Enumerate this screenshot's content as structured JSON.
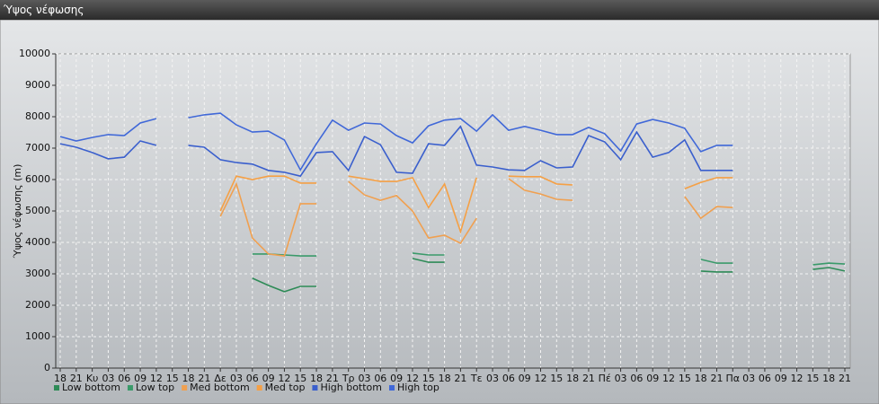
{
  "window": {
    "title": "Ύψος νέφωσης"
  },
  "chart_data": {
    "type": "line",
    "y_label": "Ύψος νέφωσης (m)",
    "categories": [
      "18",
      "21",
      "Κυ",
      "03",
      "06",
      "09",
      "12",
      "15",
      "18",
      "21",
      "Δε",
      "03",
      "06",
      "09",
      "12",
      "15",
      "18",
      "21",
      "Τρ",
      "03",
      "06",
      "09",
      "12",
      "15",
      "18",
      "21",
      "Τε",
      "03",
      "06",
      "09",
      "12",
      "15",
      "18",
      "21",
      "Πέ",
      "03",
      "06",
      "09",
      "12",
      "15",
      "18",
      "21",
      "Πα",
      "03",
      "06",
      "09",
      "12",
      "15",
      "18",
      "21"
    ],
    "ylim": [
      0,
      10000
    ],
    "yticks": [
      0,
      1000,
      2000,
      3000,
      4000,
      5000,
      6000,
      7000,
      8000,
      9000,
      10000
    ],
    "grid": true,
    "series": [
      {
        "name": "Low bottom",
        "color": "#2e8b57",
        "values": [
          null,
          null,
          null,
          null,
          null,
          null,
          null,
          null,
          null,
          null,
          null,
          null,
          2860,
          2630,
          2430,
          2600,
          2600,
          null,
          null,
          null,
          null,
          null,
          3490,
          3370,
          3370,
          null,
          null,
          null,
          null,
          null,
          null,
          null,
          null,
          null,
          null,
          null,
          null,
          null,
          null,
          null,
          3090,
          3060,
          3060,
          null,
          null,
          null,
          null,
          3140,
          3200,
          3090
        ]
      },
      {
        "name": "Low top",
        "color": "#3a9a6a",
        "values": [
          null,
          null,
          null,
          null,
          null,
          null,
          null,
          null,
          null,
          null,
          null,
          null,
          3630,
          3630,
          3600,
          3570,
          3570,
          null,
          null,
          null,
          null,
          null,
          3660,
          3600,
          3600,
          null,
          null,
          null,
          null,
          null,
          null,
          null,
          null,
          null,
          null,
          null,
          null,
          null,
          null,
          null,
          3460,
          3340,
          3340,
          null,
          null,
          null,
          null,
          3290,
          3340,
          3310
        ]
      },
      {
        "name": "Med bottom",
        "color": "#f0a050",
        "values": [
          null,
          null,
          null,
          null,
          null,
          null,
          null,
          null,
          null,
          null,
          4830,
          5860,
          4140,
          3630,
          3570,
          5230,
          5230,
          null,
          5940,
          5510,
          5340,
          5490,
          5000,
          4140,
          4230,
          3970,
          4770,
          null,
          6030,
          5660,
          5540,
          5370,
          5340,
          null,
          null,
          null,
          null,
          null,
          null,
          5460,
          4770,
          5140,
          5110,
          null,
          null,
          null,
          null,
          null,
          null,
          null
        ]
      },
      {
        "name": "Med top",
        "color": "#f5a045",
        "values": [
          null,
          null,
          null,
          null,
          null,
          null,
          null,
          null,
          null,
          null,
          5000,
          6110,
          6000,
          6110,
          6110,
          5890,
          5890,
          null,
          6110,
          6030,
          5940,
          5940,
          6060,
          5110,
          5860,
          4340,
          6060,
          null,
          6110,
          6090,
          6090,
          5860,
          5830,
          null,
          null,
          null,
          null,
          null,
          null,
          5710,
          5910,
          6060,
          6060,
          null,
          null,
          null,
          null,
          null,
          null,
          null
        ]
      },
      {
        "name": "High bottom",
        "color": "#3a5fcd",
        "values": [
          7140,
          7030,
          6860,
          6660,
          6710,
          7230,
          7090,
          null,
          7090,
          7030,
          6630,
          6540,
          6490,
          6290,
          6230,
          6110,
          6860,
          6890,
          6290,
          7370,
          7110,
          6230,
          6200,
          7140,
          7090,
          7690,
          6460,
          6400,
          6310,
          6290,
          6600,
          6370,
          6400,
          7400,
          7200,
          6630,
          7510,
          6710,
          6860,
          7260,
          6290,
          6290,
          6290,
          null,
          null,
          null,
          null,
          null,
          null,
          null
        ]
      },
      {
        "name": "High top",
        "color": "#4068d8",
        "values": [
          7370,
          7230,
          7340,
          7430,
          7400,
          7800,
          7940,
          null,
          7970,
          8060,
          8110,
          7740,
          7510,
          7540,
          7260,
          6310,
          7140,
          7890,
          7570,
          7800,
          7770,
          7400,
          7170,
          7710,
          7890,
          7940,
          7540,
          8060,
          7570,
          7690,
          7570,
          7430,
          7430,
          7660,
          7460,
          6910,
          7770,
          7910,
          7800,
          7630,
          6890,
          7090,
          7090,
          null,
          null,
          null,
          null,
          null,
          null,
          null
        ]
      }
    ]
  }
}
